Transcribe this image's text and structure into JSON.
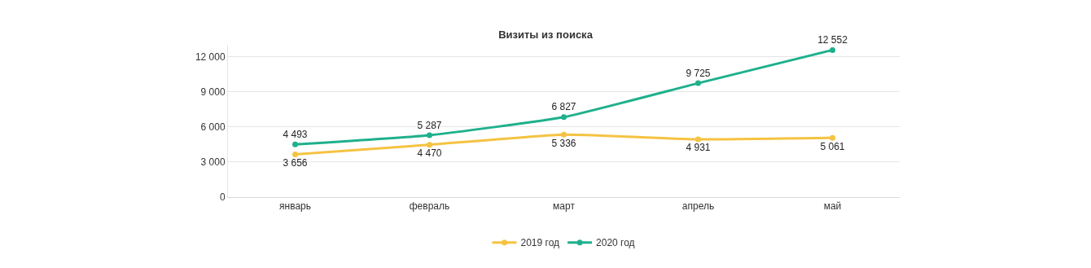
{
  "chart_data": {
    "type": "line",
    "title": "Визиты из поиска",
    "categories": [
      "январь",
      "февраль",
      "март",
      "апрель",
      "май"
    ],
    "series": [
      {
        "name": "2019 год",
        "color": "#f5c342",
        "values": [
          3656,
          4470,
          5336,
          4931,
          5061
        ],
        "value_labels": [
          "3 656",
          "4 470",
          "5 336",
          "4 931",
          "5 061"
        ]
      },
      {
        "name": "2020 год",
        "color": "#1fb08c",
        "values": [
          4493,
          5287,
          6827,
          9725,
          12552
        ],
        "value_labels": [
          "4 493",
          "5 287",
          "6 827",
          "9 725",
          "12 552"
        ]
      }
    ],
    "ylim": [
      0,
      13000
    ],
    "yticks": [
      {
        "value": 0,
        "label": "0"
      },
      {
        "value": 3000,
        "label": "3 000"
      },
      {
        "value": 6000,
        "label": "6 000"
      },
      {
        "value": 9000,
        "label": "9 000"
      },
      {
        "value": 12000,
        "label": "12 000"
      }
    ],
    "grid": "y",
    "legend": "bottom",
    "marker": "circle",
    "line_style": "solid"
  }
}
